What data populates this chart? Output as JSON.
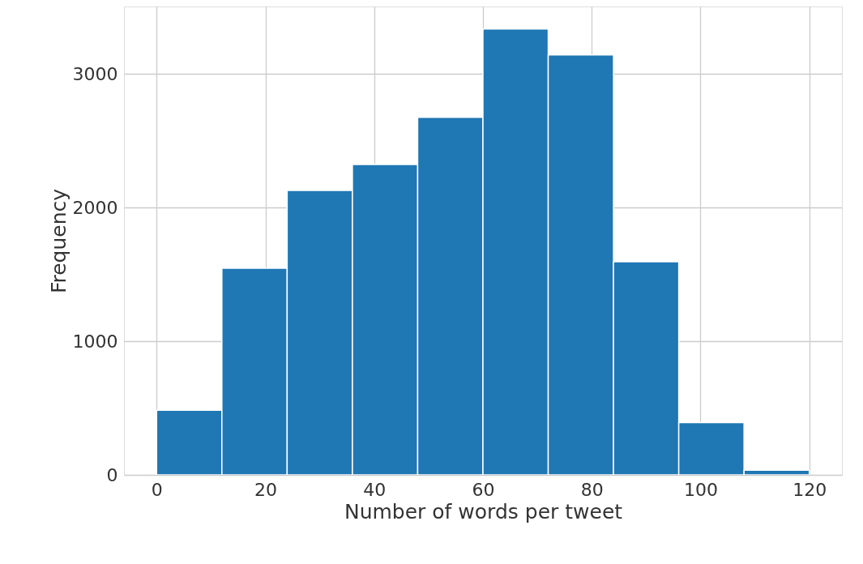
{
  "chart_data": {
    "type": "histogram",
    "xlabel": "Number of words per tweet",
    "ylabel": "Frequency",
    "bins": [
      0,
      12,
      24,
      36,
      48,
      60,
      72,
      84,
      96,
      108,
      120
    ],
    "values": [
      484,
      1547,
      2128,
      2322,
      2675,
      3336,
      3142,
      1595,
      391,
      35
    ],
    "color": "#1f77b4",
    "xlim": [
      -6,
      126
    ],
    "xticks": [
      0,
      20,
      40,
      60,
      80,
      100,
      120
    ],
    "ylim": [
      0,
      3505
    ],
    "yticks": [
      0,
      1000,
      2000,
      3000
    ],
    "grid": true
  }
}
